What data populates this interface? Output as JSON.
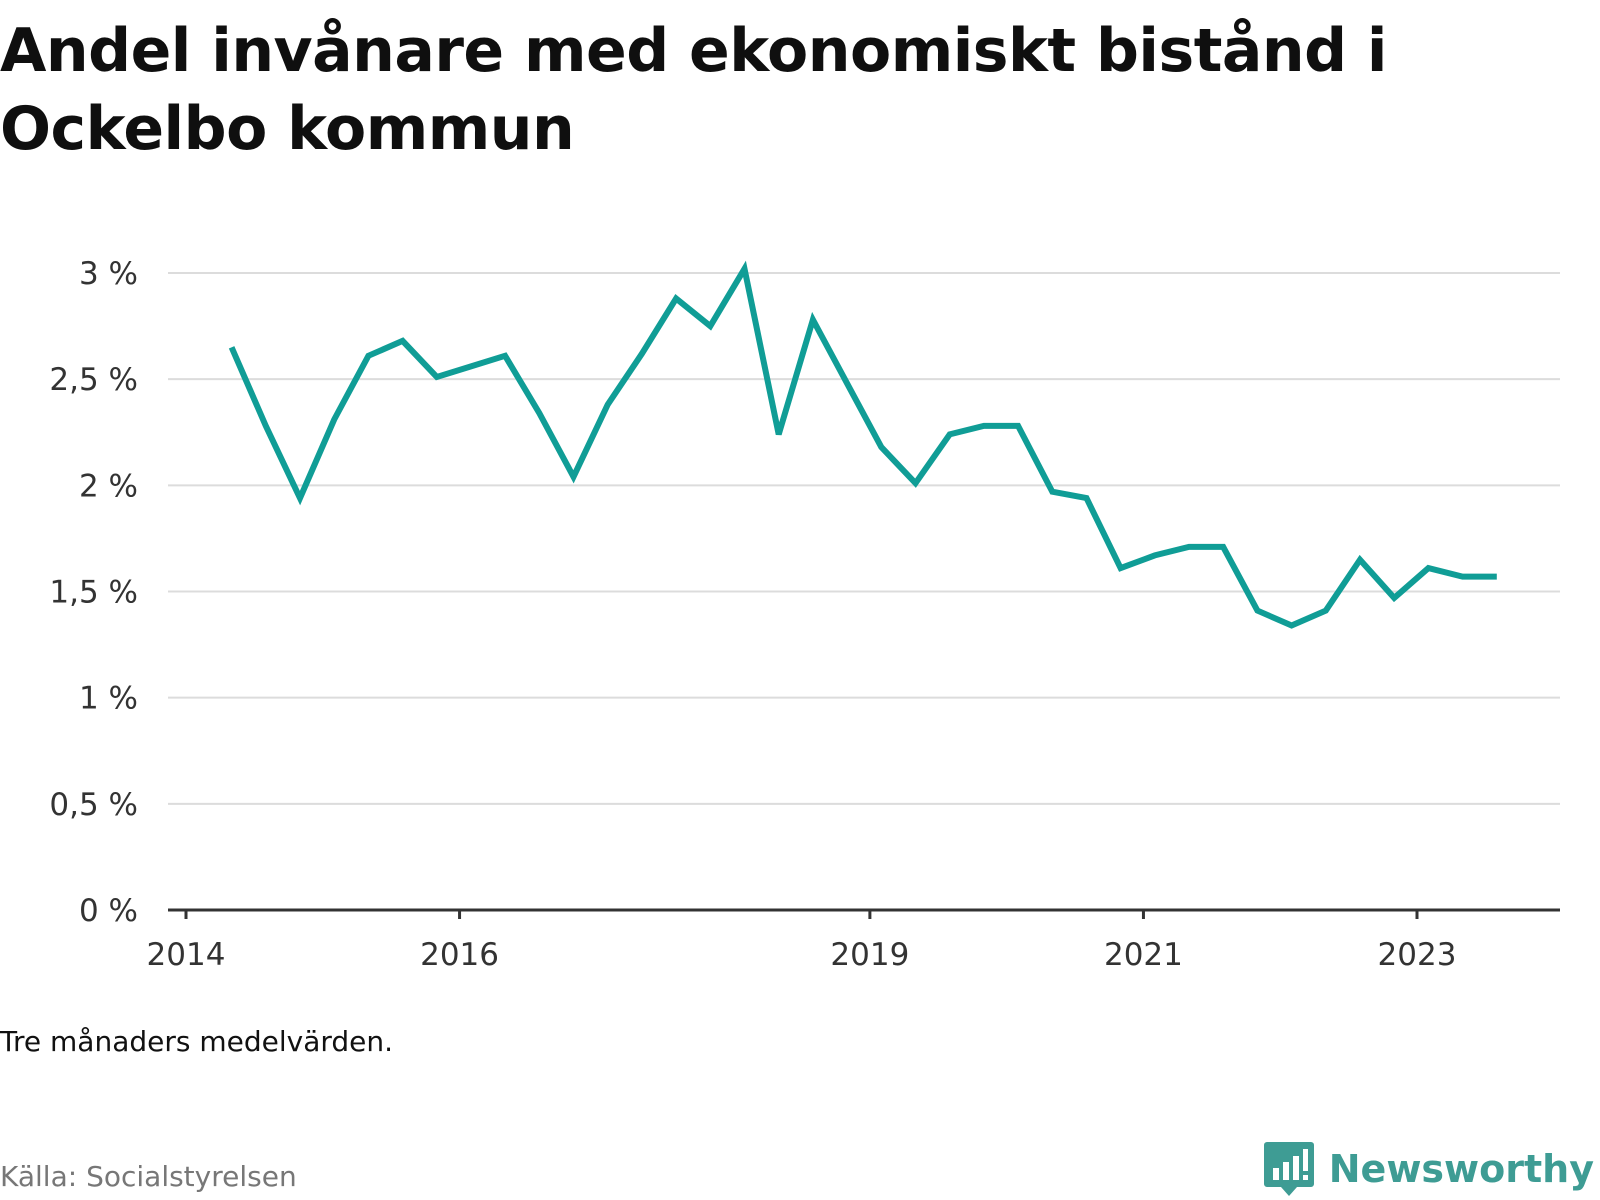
{
  "title": "Andel invånare med ekonomiskt bistånd i Ockelbo kommun",
  "note": "Tre månaders medelvärden.",
  "source": "Källa: Socialstyrelsen",
  "brand": {
    "name": "Newsworthy",
    "icon": "newsworthy-logo-icon",
    "color": "#3e9c94"
  },
  "colors": {
    "line": "#109d96",
    "grid": "#dcdcdc",
    "axis": "#333333"
  },
  "chart_data": {
    "type": "line",
    "title": "Andel invånare med ekonomiskt bistånd i Ockelbo kommun",
    "xlabel": "",
    "ylabel": "",
    "x_ticks": [
      "2014",
      "2016",
      "2019",
      "2021",
      "2023"
    ],
    "y_ticks": [
      "0 %",
      "0,5 %",
      "1 %",
      "1,5 %",
      "2 %",
      "2,5 %",
      "3 %"
    ],
    "ylim": [
      0,
      3
    ],
    "grid": true,
    "series": [
      {
        "x": [
          "2014-05",
          "2014-08",
          "2014-11",
          "2015-02",
          "2015-05",
          "2015-08",
          "2015-11",
          "2016-02",
          "2016-05",
          "2016-08",
          "2016-11",
          "2017-02",
          "2017-05",
          "2017-08",
          "2017-11",
          "2018-02",
          "2018-05",
          "2018-08",
          "2018-11",
          "2019-02",
          "2019-05",
          "2019-08",
          "2019-11",
          "2020-02",
          "2020-05",
          "2020-08",
          "2020-11",
          "2021-02",
          "2021-05",
          "2021-08",
          "2021-11",
          "2022-02",
          "2022-05",
          "2022-08",
          "2022-11",
          "2023-02",
          "2023-05",
          "2023-08"
        ],
        "values": [
          2.65,
          2.28,
          1.94,
          2.31,
          2.61,
          2.68,
          2.51,
          2.56,
          2.61,
          2.34,
          2.04,
          2.38,
          2.62,
          2.88,
          2.75,
          3.02,
          2.24,
          2.78,
          2.48,
          2.18,
          2.01,
          2.24,
          2.28,
          2.28,
          1.97,
          1.94,
          1.61,
          1.67,
          1.71,
          1.71,
          1.41,
          1.34,
          1.41,
          1.65,
          1.47,
          1.61,
          1.57,
          1.57
        ]
      }
    ]
  }
}
